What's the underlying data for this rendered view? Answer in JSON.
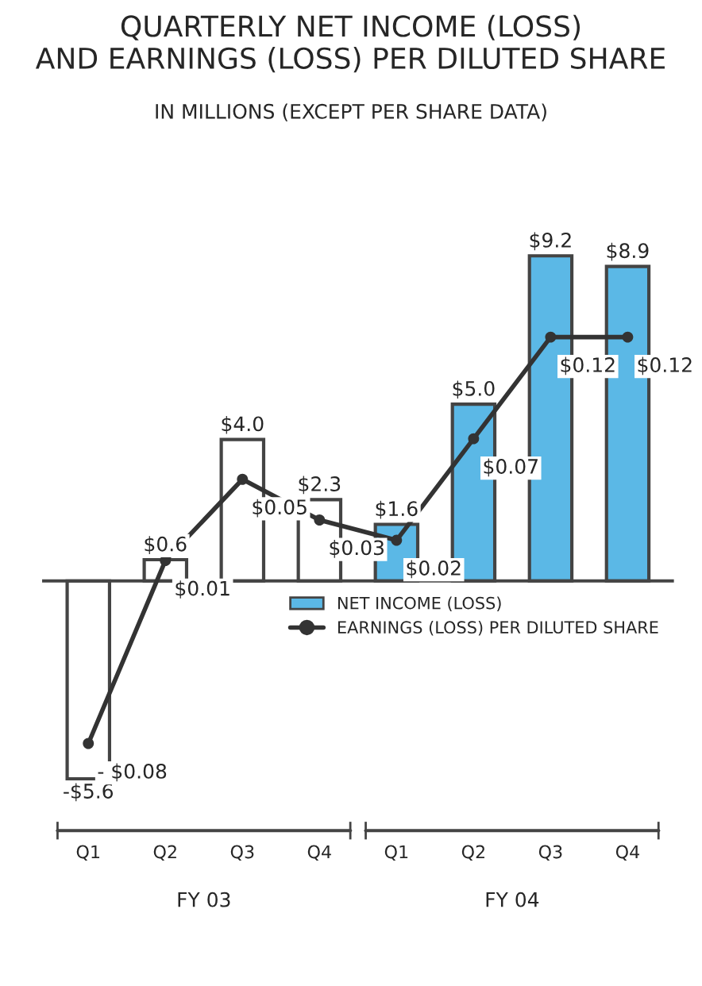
{
  "chart_data": {
    "type": "bar",
    "title": "QUARTERLY NET INCOME (LOSS)\nAND EARNINGS (LOSS) PER DILUTED SHARE",
    "subtitle": "IN MILLIONS (EXCEPT PER SHARE DATA)",
    "categories": [
      "Q1",
      "Q2",
      "Q3",
      "Q4",
      "Q1",
      "Q2",
      "Q3",
      "Q4"
    ],
    "series": [
      {
        "name": "NET INCOME (LOSS)",
        "color": "#5bb8e6",
        "colors": [
          "#ffffff",
          "#ffffff",
          "#ffffff",
          "#ffffff",
          "#5bb8e6",
          "#5bb8e6",
          "#5bb8e6",
          "#5bb8e6"
        ],
        "values": [
          -5.6,
          0.6,
          4.0,
          2.3,
          1.6,
          5.0,
          9.2,
          8.9
        ],
        "value_labels": [
          "-$5.6",
          "$0.6",
          "$4.0",
          "$2.3",
          "$1.6",
          "$5.0",
          "$9.2",
          "$8.9"
        ]
      },
      {
        "name": "EARNINGS (LOSS) PER DILUTED SHARE",
        "type": "line",
        "axis": "y2",
        "color": "#333333",
        "marker": "circle",
        "values": [
          -0.08,
          0.01,
          0.05,
          0.03,
          0.02,
          0.07,
          0.12,
          0.12
        ],
        "value_labels": [
          "- $0.08",
          "$0.01",
          "$0.05",
          "$0.03",
          "$0.02",
          "$0.07",
          "$0.12",
          "$0.12"
        ]
      }
    ],
    "annotations": [
      "FY 03",
      "FY 04"
    ],
    "legend": "right",
    "grid": false
  }
}
